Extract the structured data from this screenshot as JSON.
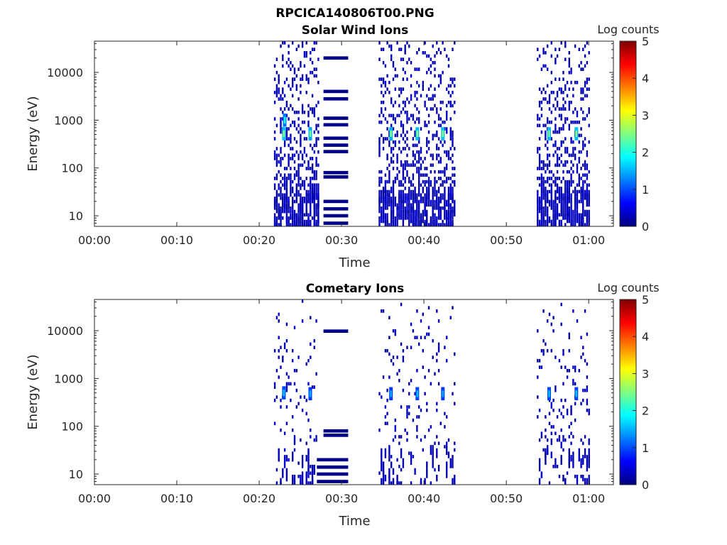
{
  "figure": {
    "title": "RPCICA140806T00.PNG"
  },
  "colormap": {
    "name": "jet",
    "stops": [
      "#00007f",
      "#0000ff",
      "#007fff",
      "#00ffff",
      "#7fff7f",
      "#ffff00",
      "#ff7f00",
      "#ff0000",
      "#7f0000"
    ]
  },
  "chart_data": [
    {
      "type": "heatmap",
      "title": "Solar Wind Ions",
      "xlabel": "Time",
      "ylabel": "Energy (eV)",
      "xlim_minutes": [
        0,
        63
      ],
      "ylim": [
        6,
        45000
      ],
      "yscale": "log",
      "xticks": [
        {
          "minute": 0,
          "label": "00:00"
        },
        {
          "minute": 10,
          "label": "00:10"
        },
        {
          "minute": 20,
          "label": "00:20"
        },
        {
          "minute": 30,
          "label": "00:30"
        },
        {
          "minute": 40,
          "label": "00:40"
        },
        {
          "minute": 50,
          "label": "00:50"
        },
        {
          "minute": 60,
          "label": "01:00"
        }
      ],
      "yticks": [
        {
          "value": 10,
          "label": "10"
        },
        {
          "value": 100,
          "label": "100"
        },
        {
          "value": 1000,
          "label": "1000"
        },
        {
          "value": 10000,
          "label": "10000"
        }
      ],
      "colorbar": {
        "label": "Log counts",
        "min": 0,
        "max": 5,
        "ticks": [
          "0",
          "1",
          "2",
          "3",
          "4",
          "5"
        ]
      },
      "sweeps": [
        {
          "start": 21.8,
          "end": 27.2,
          "density": 0.34
        },
        {
          "start": 34.5,
          "end": 43.8,
          "density": 0.33
        },
        {
          "start": 53.7,
          "end": 60.1,
          "density": 0.34
        }
      ],
      "peaks": [
        {
          "minute": 23.0,
          "energy": 520,
          "level": 2.6
        },
        {
          "minute": 23.1,
          "energy": 1000,
          "level": 2.0
        },
        {
          "minute": 26.2,
          "energy": 520,
          "level": 2.4
        },
        {
          "minute": 36.0,
          "energy": 520,
          "level": 2.5
        },
        {
          "minute": 39.2,
          "energy": 520,
          "level": 2.6
        },
        {
          "minute": 42.3,
          "energy": 520,
          "level": 2.6
        },
        {
          "minute": 55.2,
          "energy": 520,
          "level": 2.5
        },
        {
          "minute": 58.5,
          "energy": 520,
          "level": 2.6
        }
      ],
      "bands": [
        {
          "start": 27.8,
          "end": 30.8,
          "energy": 20000,
          "level": 0.05
        },
        {
          "start": 27.8,
          "end": 30.8,
          "energy": 4000,
          "level": 0.05
        },
        {
          "start": 27.8,
          "end": 30.8,
          "energy": 2800,
          "level": 0.05
        },
        {
          "start": 27.8,
          "end": 30.8,
          "energy": 1100,
          "level": 0.05
        },
        {
          "start": 27.8,
          "end": 30.8,
          "energy": 800,
          "level": 0.05
        },
        {
          "start": 27.8,
          "end": 30.8,
          "energy": 420,
          "level": 0.05
        },
        {
          "start": 27.8,
          "end": 30.8,
          "energy": 300,
          "level": 0.05
        },
        {
          "start": 27.8,
          "end": 30.8,
          "energy": 220,
          "level": 0.05
        },
        {
          "start": 27.8,
          "end": 30.8,
          "energy": 80,
          "level": 0.05
        },
        {
          "start": 27.8,
          "end": 30.8,
          "energy": 65,
          "level": 0.05
        },
        {
          "start": 27.8,
          "end": 30.8,
          "energy": 20,
          "level": 0.05
        },
        {
          "start": 27.8,
          "end": 30.8,
          "energy": 14,
          "level": 0.05
        },
        {
          "start": 27.8,
          "end": 30.8,
          "energy": 10,
          "level": 0.05
        },
        {
          "start": 27.8,
          "end": 30.8,
          "energy": 7,
          "level": 0.05
        }
      ]
    },
    {
      "type": "heatmap",
      "title": "Cometary Ions",
      "xlabel": "Time",
      "ylabel": "Energy (eV)",
      "xlim_minutes": [
        0,
        63
      ],
      "ylim": [
        6,
        45000
      ],
      "yscale": "log",
      "xticks": [
        {
          "minute": 0,
          "label": "00:00"
        },
        {
          "minute": 10,
          "label": "00:10"
        },
        {
          "minute": 20,
          "label": "00:20"
        },
        {
          "minute": 30,
          "label": "00:30"
        },
        {
          "minute": 40,
          "label": "00:40"
        },
        {
          "minute": 50,
          "label": "00:50"
        },
        {
          "minute": 60,
          "label": "01:00"
        }
      ],
      "yticks": [
        {
          "value": 10,
          "label": "10"
        },
        {
          "value": 100,
          "label": "100"
        },
        {
          "value": 1000,
          "label": "1000"
        },
        {
          "value": 10000,
          "label": "10000"
        }
      ],
      "colorbar": {
        "label": "Log counts",
        "min": 0,
        "max": 5,
        "ticks": [
          "0",
          "1",
          "2",
          "3",
          "4",
          "5"
        ]
      },
      "sweeps": [
        {
          "start": 21.8,
          "end": 27.0,
          "density": 0.12
        },
        {
          "start": 34.5,
          "end": 43.8,
          "density": 0.1
        },
        {
          "start": 53.7,
          "end": 60.1,
          "density": 0.12
        }
      ],
      "peaks": [
        {
          "minute": 23.0,
          "energy": 500,
          "level": 1.6
        },
        {
          "minute": 26.2,
          "energy": 480,
          "level": 1.5
        },
        {
          "minute": 36.0,
          "energy": 480,
          "level": 1.5
        },
        {
          "minute": 39.2,
          "energy": 480,
          "level": 1.6
        },
        {
          "minute": 42.3,
          "energy": 480,
          "level": 1.5
        },
        {
          "minute": 55.2,
          "energy": 480,
          "level": 1.6
        },
        {
          "minute": 58.5,
          "energy": 480,
          "level": 1.6
        }
      ],
      "bands": [
        {
          "start": 27.8,
          "end": 30.8,
          "energy": 9800,
          "level": 0.05
        },
        {
          "start": 27.8,
          "end": 30.8,
          "energy": 80,
          "level": 0.05
        },
        {
          "start": 27.8,
          "end": 30.8,
          "energy": 65,
          "level": 0.05
        },
        {
          "start": 27.0,
          "end": 30.8,
          "energy": 20,
          "level": 0.05
        },
        {
          "start": 27.0,
          "end": 30.8,
          "energy": 14,
          "level": 0.05
        },
        {
          "start": 27.0,
          "end": 30.8,
          "energy": 10,
          "level": 0.05
        },
        {
          "start": 27.0,
          "end": 30.8,
          "energy": 7,
          "level": 0.05
        }
      ]
    }
  ]
}
